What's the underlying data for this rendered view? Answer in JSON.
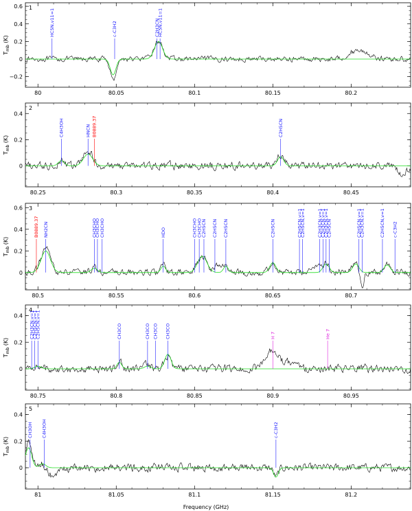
{
  "chart_data": {
    "type": "line",
    "xlabel": "Frequency (GHz)",
    "ylabel": "T",
    "ylabel_sub": "mb",
    "ylabel_unit": "(K)",
    "colors": {
      "observed": "#000000",
      "model": "#22dd22",
      "label_blue": "#1a1aff",
      "label_red": "#ff0000",
      "label_magenta": "#dd22dd"
    },
    "panels": [
      {
        "number": "1",
        "xlim": [
          79.992,
          80.238
        ],
        "ylim": [
          -0.32,
          0.64
        ],
        "xticks": [
          80,
          80.05,
          80.1,
          80.15,
          80.2
        ],
        "xtick_labels": [
          "80",
          "80.05",
          "80.1",
          "80.15",
          "80.2"
        ],
        "yticks": [
          -0.2,
          0,
          0.2,
          0.4,
          0.6
        ],
        "ytick_labels": [
          "−0.2",
          "0",
          "0.2",
          "0.4",
          "0.6"
        ],
        "features": [
          {
            "x": 80.048,
            "amp": -0.24,
            "w": 0.0018
          },
          {
            "x": 80.077,
            "amp": 0.2,
            "w": 0.0028
          },
          {
            "x": 80.205,
            "amp": 0.1,
            "w": 0.006
          }
        ],
        "model_features": [
          {
            "x": 80.048,
            "amp": -0.18,
            "w": 0.0018
          },
          {
            "x": 80.077,
            "amp": 0.2,
            "w": 0.0026
          }
        ],
        "labels": [
          {
            "x": 80.009,
            "text": "HC5N,v11=1",
            "color": "blue"
          },
          {
            "x": 80.049,
            "text": "c-C3H2",
            "color": "blue"
          },
          {
            "x": 80.076,
            "text": "C2H3CN",
            "color": "blue"
          },
          {
            "x": 80.078,
            "text": "HC5N,v11=1",
            "color": "blue"
          }
        ]
      },
      {
        "number": "2",
        "xlim": [
          80.242,
          80.488
        ],
        "ylim": [
          -0.16,
          0.48
        ],
        "xticks": [
          80.25,
          80.3,
          80.35,
          80.4,
          80.45
        ],
        "xtick_labels": [
          "80.25",
          "80.3",
          "80.35",
          "80.4",
          "80.45"
        ],
        "yticks": [
          0,
          0.2,
          0.4
        ],
        "ytick_labels": [
          "0",
          "0.2",
          "0.4"
        ],
        "features": [
          {
            "x": 80.265,
            "amp": 0.05,
            "w": 0.002
          },
          {
            "x": 80.282,
            "amp": 0.11,
            "w": 0.003
          },
          {
            "x": 80.405,
            "amp": 0.09,
            "w": 0.002
          },
          {
            "x": 80.483,
            "amp": -0.07,
            "w": 0.003
          }
        ],
        "model_features": [
          {
            "x": 80.265,
            "amp": 0.04,
            "w": 0.002
          },
          {
            "x": 80.282,
            "amp": 0.09,
            "w": 0.003
          },
          {
            "x": 80.405,
            "amp": 0.07,
            "w": 0.002
          }
        ],
        "labels": [
          {
            "x": 80.265,
            "text": "C4H3OH",
            "color": "blue"
          },
          {
            "x": 80.282,
            "text": "HNCN",
            "color": "blue"
          },
          {
            "x": 80.286,
            "text": "B0889.37",
            "color": "red"
          },
          {
            "x": 80.405,
            "text": "C2H5CN",
            "color": "blue"
          }
        ]
      },
      {
        "number": "3",
        "xlim": [
          80.492,
          80.738
        ],
        "ylim": [
          -0.16,
          0.64
        ],
        "xticks": [
          80.5,
          80.55,
          80.6,
          80.65,
          80.7
        ],
        "xtick_labels": [
          "80.5",
          "80.55",
          "80.6",
          "80.65",
          "80.7"
        ],
        "yticks": [
          0,
          0.2,
          0.4,
          0.6
        ],
        "ytick_labels": [
          "0",
          "0.2",
          "0.4",
          "0.6"
        ],
        "features": [
          {
            "x": 80.505,
            "amp": 0.22,
            "w": 0.003
          },
          {
            "x": 80.536,
            "amp": 0.05,
            "w": 0.002
          },
          {
            "x": 80.58,
            "amp": 0.07,
            "w": 0.0015
          },
          {
            "x": 80.605,
            "amp": 0.15,
            "w": 0.003
          },
          {
            "x": 80.615,
            "amp": 0.07,
            "w": 0.002
          },
          {
            "x": 80.62,
            "amp": 0.07,
            "w": 0.0015
          },
          {
            "x": 80.65,
            "amp": 0.1,
            "w": 0.002
          },
          {
            "x": 80.678,
            "amp": 0.08,
            "w": 0.002
          },
          {
            "x": 80.684,
            "amp": 0.1,
            "w": 0.002
          },
          {
            "x": 80.703,
            "amp": 0.09,
            "w": 0.002
          },
          {
            "x": 80.707,
            "amp": -0.14,
            "w": 0.001
          },
          {
            "x": 80.723,
            "amp": 0.07,
            "w": 0.002
          }
        ],
        "model_features": [
          {
            "x": 80.505,
            "amp": 0.2,
            "w": 0.003
          },
          {
            "x": 80.536,
            "amp": 0.04,
            "w": 0.002
          },
          {
            "x": 80.58,
            "amp": 0.06,
            "w": 0.0015
          },
          {
            "x": 80.605,
            "amp": 0.15,
            "w": 0.003
          },
          {
            "x": 80.62,
            "amp": 0.06,
            "w": 0.0015
          },
          {
            "x": 80.65,
            "amp": 0.09,
            "w": 0.002
          },
          {
            "x": 80.684,
            "amp": 0.08,
            "w": 0.002
          },
          {
            "x": 80.703,
            "amp": 0.08,
            "w": 0.002
          },
          {
            "x": 80.723,
            "amp": 0.07,
            "w": 0.002
          }
        ],
        "labels": [
          {
            "x": 80.499,
            "text": "B0889.37",
            "color": "red"
          },
          {
            "x": 80.505,
            "text": "NH2CN",
            "color": "blue"
          },
          {
            "x": 80.536,
            "text": "CH3CHO",
            "color": "blue"
          },
          {
            "x": 80.538,
            "text": "CH3CHO",
            "color": "blue"
          },
          {
            "x": 80.541,
            "text": "CH3CHO",
            "color": "blue"
          },
          {
            "x": 80.58,
            "text": "HDO",
            "color": "blue"
          },
          {
            "x": 80.6,
            "text": "CH3CHO",
            "color": "blue"
          },
          {
            "x": 80.603,
            "text": "CH3CHO",
            "color": "blue"
          },
          {
            "x": 80.606,
            "text": "C2H5CN",
            "color": "blue"
          },
          {
            "x": 80.613,
            "text": "C2H5CN",
            "color": "blue"
          },
          {
            "x": 80.62,
            "text": "C2H5CN",
            "color": "blue"
          },
          {
            "x": 80.65,
            "text": "C2H5CN",
            "color": "blue"
          },
          {
            "x": 80.667,
            "text": "C2H5CN,v=1",
            "color": "blue"
          },
          {
            "x": 80.669,
            "text": "C2H5CN,v=1",
            "color": "blue"
          },
          {
            "x": 80.68,
            "text": "C2H3CN,v=1",
            "color": "blue"
          },
          {
            "x": 80.682,
            "text": "C2H3CN,v=1",
            "color": "blue"
          },
          {
            "x": 80.684,
            "text": "C2H3CN,v=1",
            "color": "blue"
          },
          {
            "x": 80.686,
            "text": "C2H5CN",
            "color": "blue"
          },
          {
            "x": 80.705,
            "text": "C2H5CN,v=1",
            "color": "blue"
          },
          {
            "x": 80.707,
            "text": "C2H3CN,v=1",
            "color": "blue"
          },
          {
            "x": 80.72,
            "text": "C2H5CN,v=1",
            "color": "blue"
          },
          {
            "x": 80.728,
            "text": "c-C3H2",
            "color": "blue"
          }
        ]
      },
      {
        "number": "4",
        "xlim": [
          80.742,
          80.988
        ],
        "ylim": [
          -0.16,
          0.48
        ],
        "xticks": [
          80.75,
          80.8,
          80.85,
          80.9,
          80.95
        ],
        "xtick_labels": [
          "80.75",
          "80.8",
          "80.85",
          "80.9",
          "80.95"
        ],
        "yticks": [
          0,
          0.2,
          0.4
        ],
        "ytick_labels": [
          "0",
          "0.2",
          "0.4"
        ],
        "features": [
          {
            "x": 80.75,
            "amp": 0.03,
            "w": 0.002
          },
          {
            "x": 80.802,
            "amp": 0.06,
            "w": 0.0015
          },
          {
            "x": 80.82,
            "amp": 0.04,
            "w": 0.002
          },
          {
            "x": 80.833,
            "amp": 0.1,
            "w": 0.002
          },
          {
            "x": 80.9,
            "amp": 0.15,
            "w": 0.004
          },
          {
            "x": 80.912,
            "amp": 0.05,
            "w": 0.004
          }
        ],
        "model_features": [
          {
            "x": 80.75,
            "amp": 0.02,
            "w": 0.002
          },
          {
            "x": 80.802,
            "amp": 0.05,
            "w": 0.0015
          },
          {
            "x": 80.82,
            "amp": 0.02,
            "w": 0.002
          },
          {
            "x": 80.833,
            "amp": 0.11,
            "w": 0.002
          }
        ],
        "labels": [
          {
            "x": 80.746,
            "text": "C2H3CN,v=1",
            "color": "blue"
          },
          {
            "x": 80.748,
            "text": "C2H5CN,v=1",
            "color": "blue"
          },
          {
            "x": 80.75,
            "text": "C2H5CN,v=1",
            "color": "blue"
          },
          {
            "x": 80.802,
            "text": "CH3CO",
            "color": "blue"
          },
          {
            "x": 80.82,
            "text": "CH3CO",
            "color": "blue"
          },
          {
            "x": 80.825,
            "text": "CH3CO",
            "color": "blue"
          },
          {
            "x": 80.833,
            "text": "CH3CO",
            "color": "blue"
          },
          {
            "x": 80.9,
            "text": "H 7",
            "color": "magenta"
          },
          {
            "x": 80.935,
            "text": "He 7",
            "color": "magenta"
          }
        ]
      },
      {
        "number": "5",
        "xlim": [
          80.992,
          81.238
        ],
        "ylim": [
          -0.16,
          0.48
        ],
        "xticks": [
          81,
          81.05,
          81.1,
          81.15,
          81.2
        ],
        "xtick_labels": [
          "81",
          "81.05",
          "81.1",
          "81.15",
          "81.2"
        ],
        "yticks": [
          0,
          0.2,
          0.4
        ],
        "ytick_labels": [
          "0",
          "0.2",
          "0.4"
        ],
        "features": [
          {
            "x": 80.994,
            "amp": 0.2,
            "w": 0.002
          },
          {
            "x": 81.003,
            "amp": 0.04,
            "w": 0.002
          },
          {
            "x": 81.01,
            "amp": -0.06,
            "w": 0.004
          },
          {
            "x": 81.152,
            "amp": -0.07,
            "w": 0.0015
          }
        ],
        "model_features": [
          {
            "x": 80.994,
            "amp": 0.15,
            "w": 0.002
          },
          {
            "x": 81.003,
            "amp": 0.03,
            "w": 0.002
          },
          {
            "x": 81.152,
            "amp": -0.07,
            "w": 0.0015
          }
        ],
        "labels": [
          {
            "x": 80.995,
            "text": "CH3OH",
            "color": "blue"
          },
          {
            "x": 81.004,
            "text": "C4H3OH",
            "color": "blue"
          },
          {
            "x": 81.152,
            "text": "c-C3H2",
            "color": "blue"
          }
        ]
      }
    ]
  }
}
